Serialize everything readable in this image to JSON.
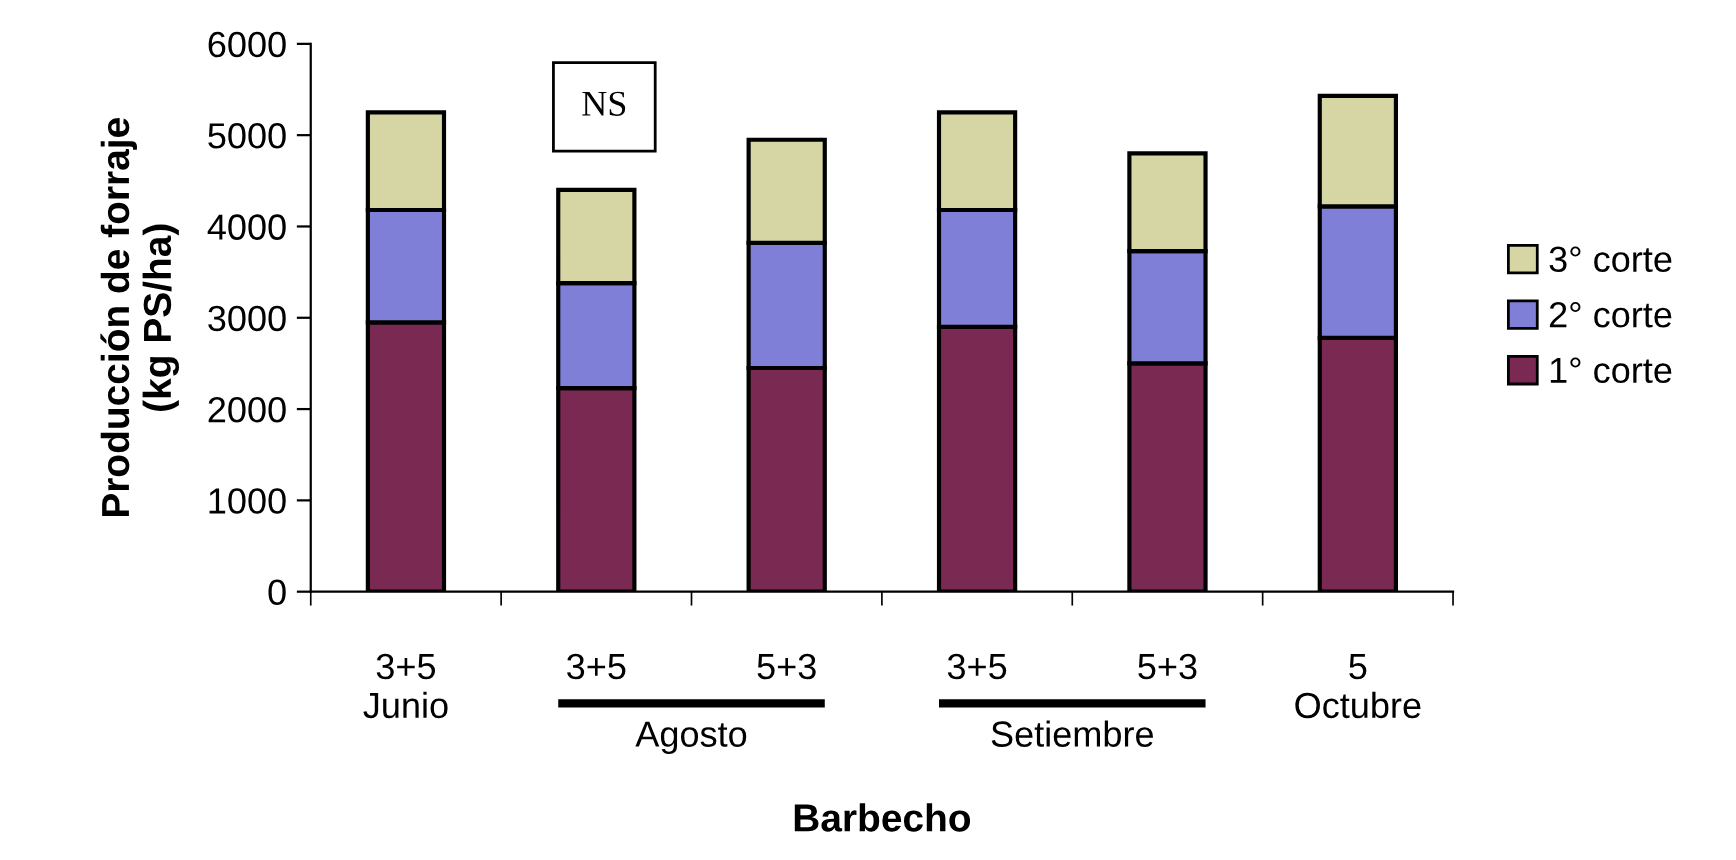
{
  "chart_data": {
    "type": "bar",
    "stacked": true,
    "categories": [
      "3+5\nJunio",
      "3+5",
      "5+3",
      "3+5",
      "5+3",
      "5\nOctubre"
    ],
    "series": [
      {
        "name": "1° corte",
        "color": "#7a2a52",
        "values": [
          2950,
          2230,
          2450,
          2900,
          2500,
          2780
        ]
      },
      {
        "name": "2° corte",
        "color": "#7f7fd8",
        "values": [
          1230,
          1150,
          1370,
          1280,
          1230,
          1440
        ]
      },
      {
        "name": "3° corte",
        "color": "#d6d6a4",
        "values": [
          1070,
          1020,
          1130,
          1070,
          1070,
          1210
        ]
      }
    ],
    "ylim": [
      0,
      6000
    ],
    "yticks": [
      0,
      1000,
      2000,
      3000,
      4000,
      5000,
      6000
    ],
    "xlabel": "Barbecho",
    "ylabel": "Producción de forraje\n(kg PS/ha)",
    "annotations": [
      "NS",
      "Agosto",
      "Setiembre"
    ],
    "legend": "right",
    "grid": false
  }
}
